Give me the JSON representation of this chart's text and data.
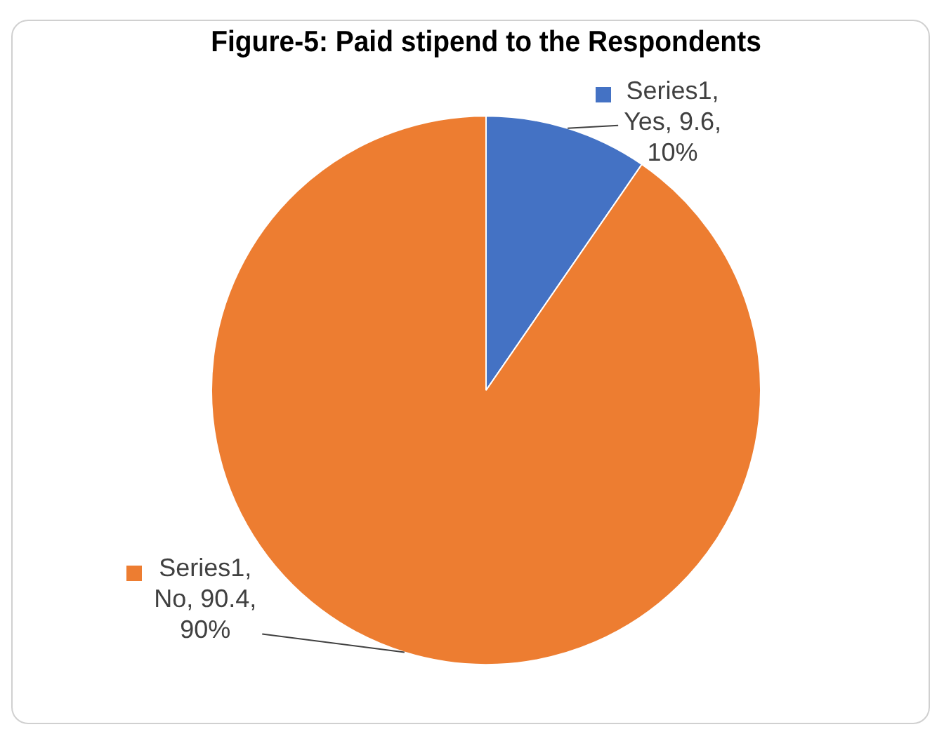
{
  "chart_data": {
    "type": "pie",
    "title": "Figure-5: Paid stipend to the Respondents",
    "categories": [
      null,
      null
    ],
    "values": [
      9.6,
      90.4
    ],
    "colors": [
      "#4472c4",
      "#ed7d31"
    ],
    "value_labels": [
      "Series1, Yes, 9.6, 10%",
      "Series1, No, 90.4, 90%"
    ],
    "legend": false
  }
}
